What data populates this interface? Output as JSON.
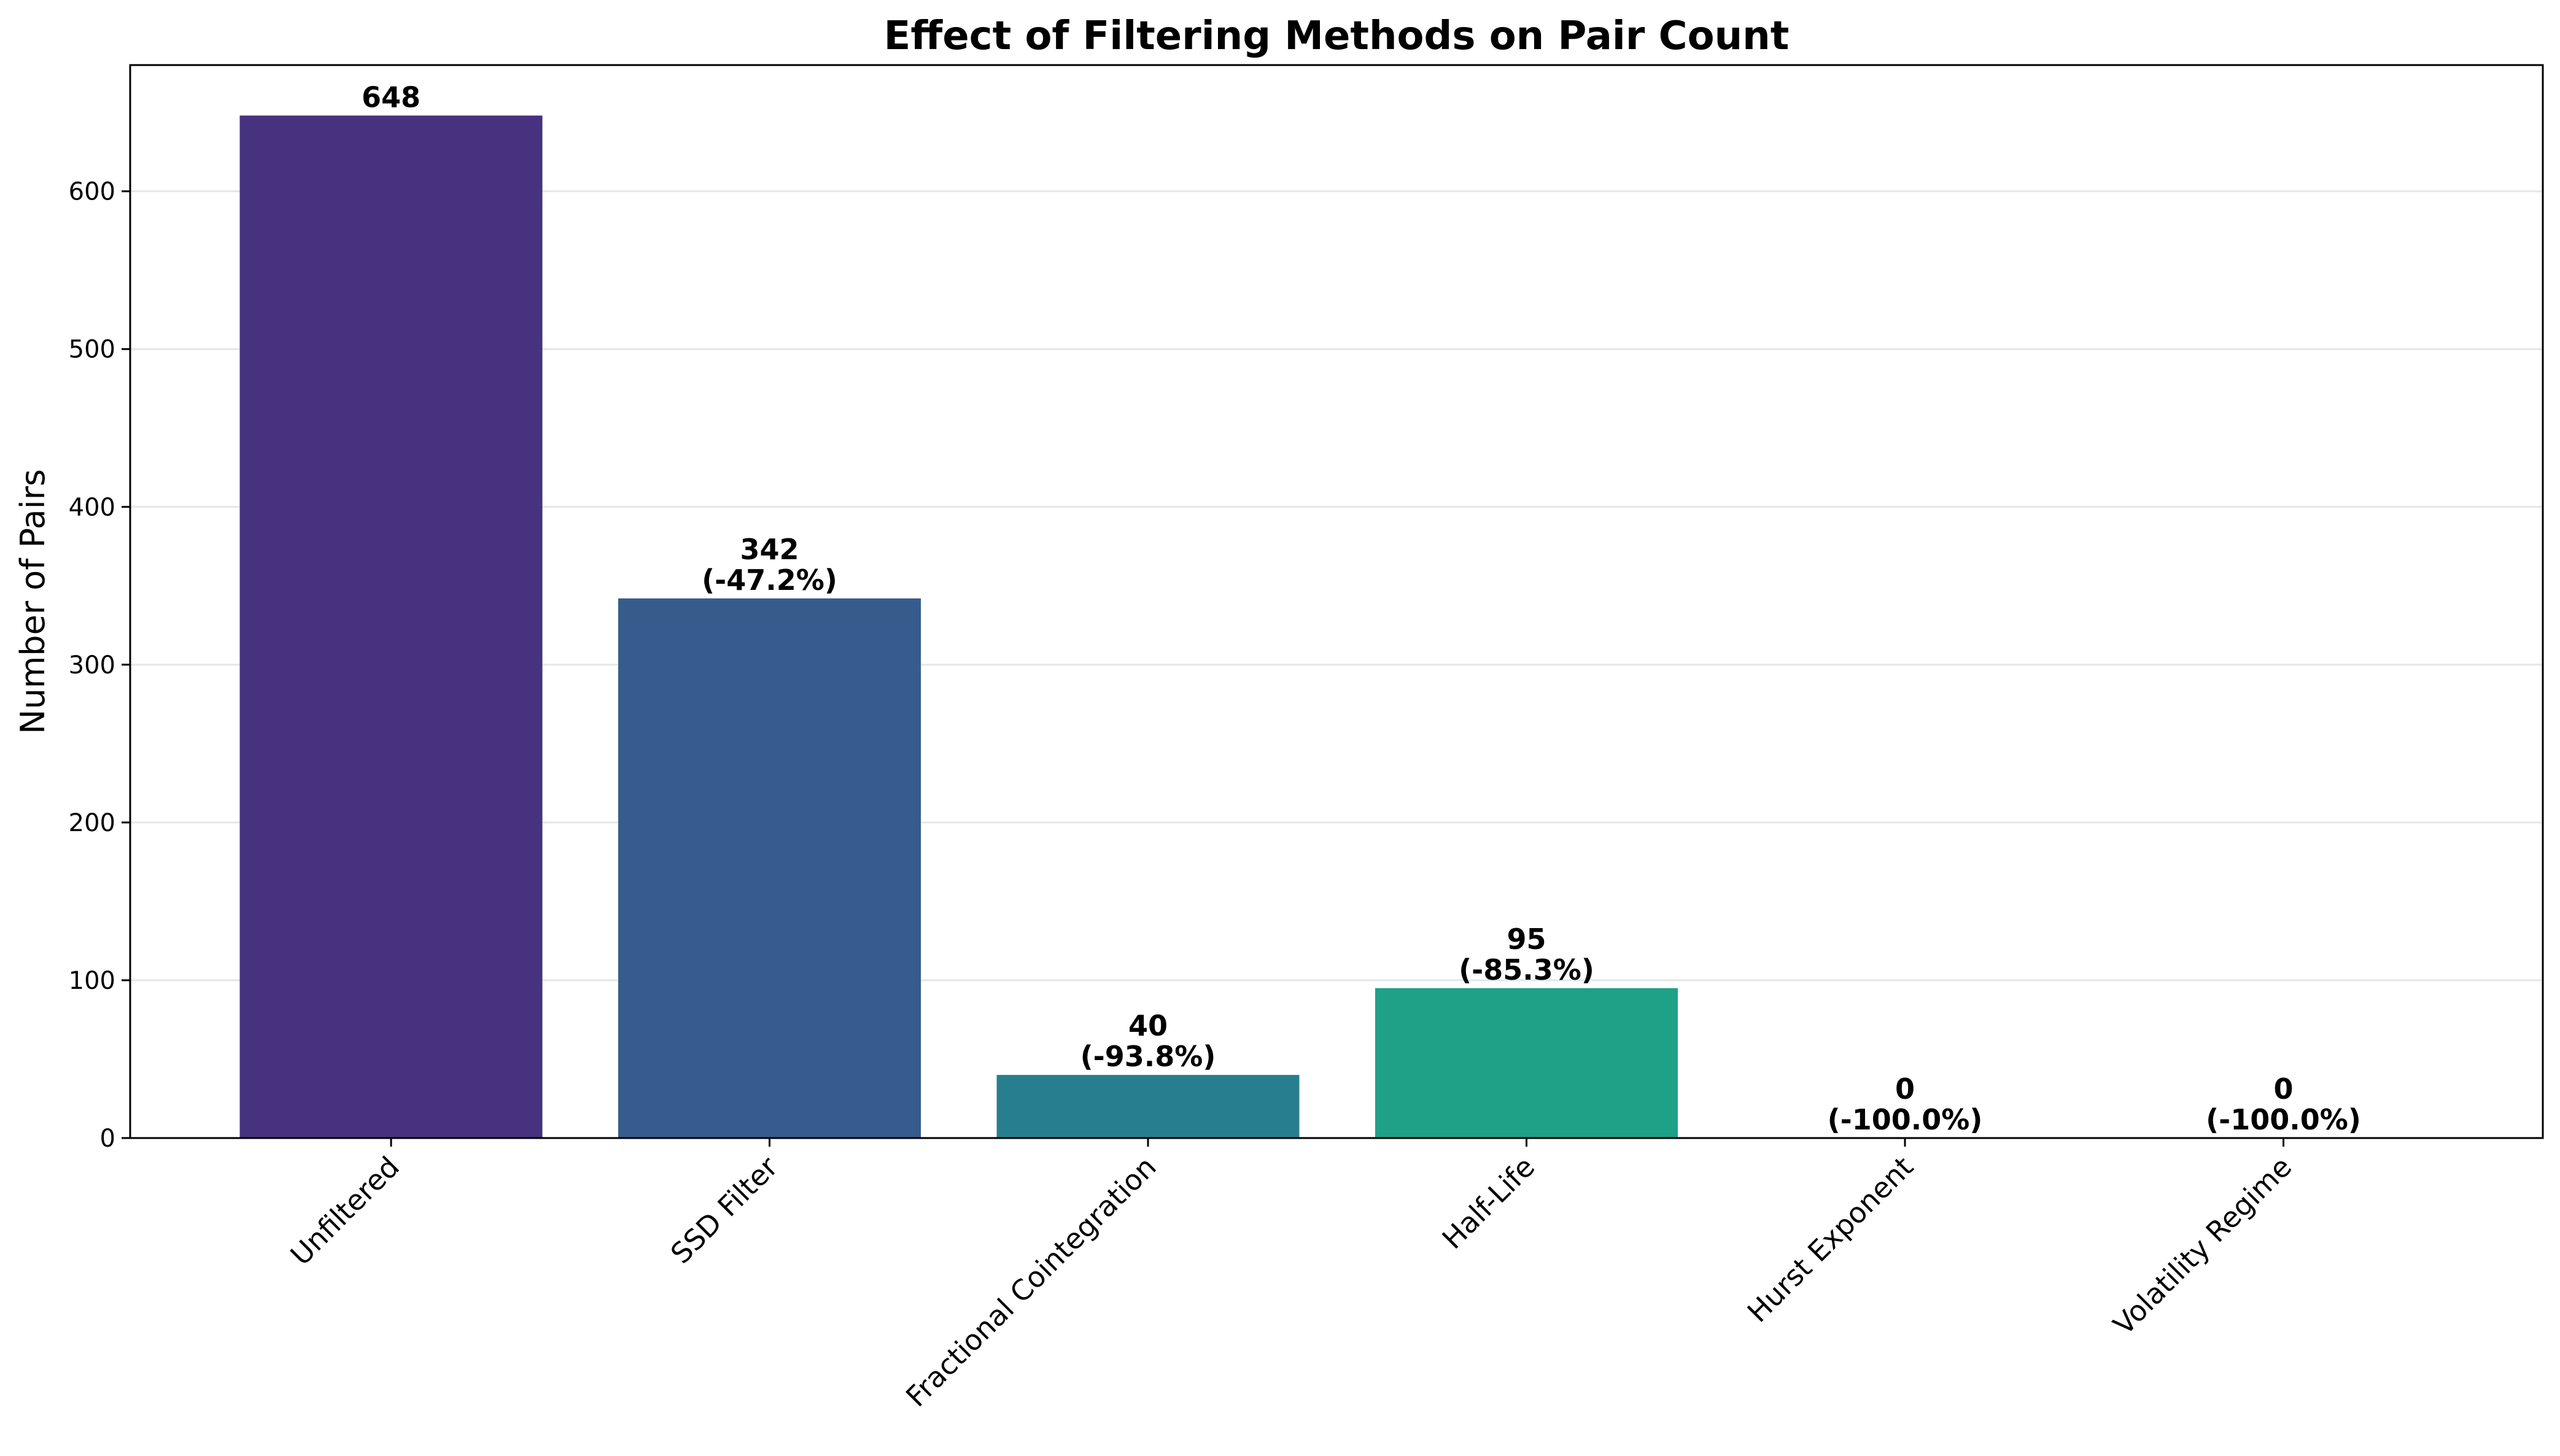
{
  "chart_data": {
    "type": "bar",
    "title": "Effect of Filtering Methods on Pair Count",
    "xlabel": "",
    "ylabel": "Number of Pairs",
    "categories": [
      "Unfiltered",
      "SSD Filter",
      "Fractional Cointegration",
      "Half-Life",
      "Hurst Exponent",
      "Volatility Regime"
    ],
    "values": [
      648,
      342,
      40,
      95,
      0,
      0
    ],
    "data_labels": [
      [
        "648"
      ],
      [
        "342",
        "(-47.2%)"
      ],
      [
        "40",
        "(-93.8%)"
      ],
      [
        "95",
        "(-85.3%)"
      ],
      [
        "0",
        "(-100.0%)"
      ],
      [
        "0",
        "(-100.0%)"
      ]
    ],
    "colors": [
      "#46327e",
      "#365c8d",
      "#277f8e",
      "#1fa187",
      "#4ac16d",
      "#a0da39"
    ],
    "ylim": [
      0,
      680
    ],
    "yticks": [
      0,
      100,
      200,
      300,
      400,
      500,
      600
    ],
    "grid": "horizontal",
    "legend": "none"
  }
}
